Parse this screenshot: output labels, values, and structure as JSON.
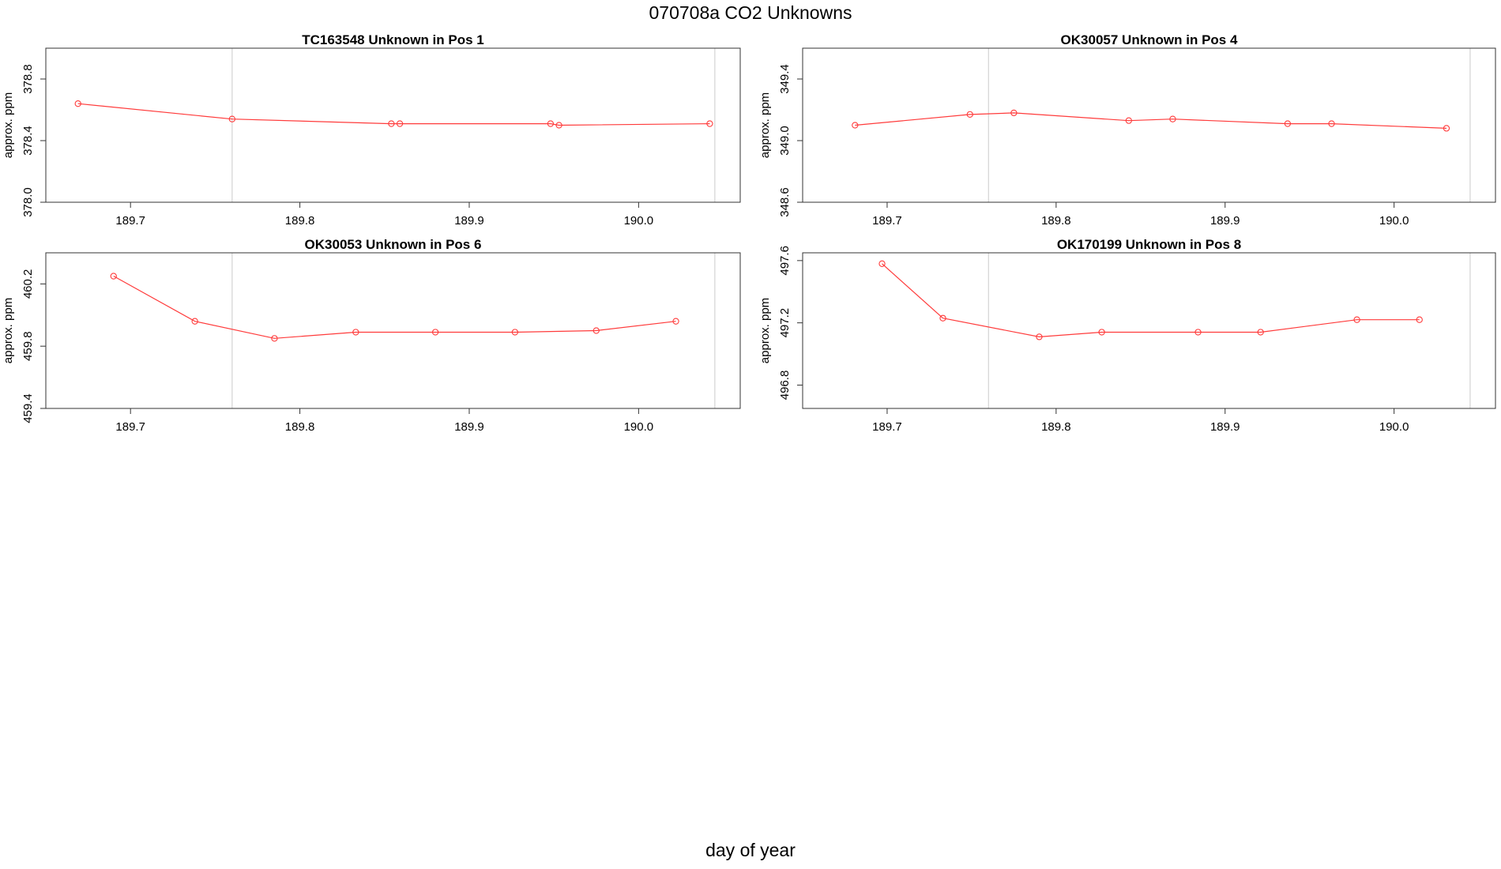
{
  "figure": {
    "title": "070708a  CO2 Unknowns",
    "xlabel": "day of year"
  },
  "chart_data": [
    {
      "type": "line",
      "title": "TC163548    Unknown in Pos 1",
      "ylabel": "approx. ppm",
      "xlim": [
        189.65,
        190.06
      ],
      "ylim": [
        378.0,
        379.0
      ],
      "xticks": [
        "189.7",
        "189.8",
        "189.9",
        "190.0"
      ],
      "yticks": [
        "378.0",
        "378.4",
        "378.8"
      ],
      "ref_lines": [
        189.76,
        190.045
      ],
      "series": [
        {
          "x": [
            189.669,
            189.76,
            189.854,
            189.859,
            189.948,
            189.953,
            190.042
          ],
          "y": [
            378.64,
            378.54,
            378.51,
            378.51,
            378.51,
            378.5,
            378.51
          ]
        }
      ]
    },
    {
      "type": "line",
      "title": "OK30057    Unknown in Pos 4",
      "ylabel": "approx. ppm",
      "xlim": [
        189.65,
        190.06
      ],
      "ylim": [
        348.6,
        349.6
      ],
      "xticks": [
        "189.7",
        "189.8",
        "189.9",
        "190.0"
      ],
      "yticks": [
        "348.6",
        "349.0",
        "349.4"
      ],
      "ref_lines": [
        189.76,
        190.045
      ],
      "series": [
        {
          "x": [
            189.681,
            189.749,
            189.775,
            189.843,
            189.869,
            189.937,
            189.963,
            190.031
          ],
          "y": [
            349.1,
            349.17,
            349.18,
            349.13,
            349.14,
            349.11,
            349.11,
            349.08
          ]
        }
      ]
    },
    {
      "type": "line",
      "title": "OK30053    Unknown in Pos 6",
      "ylabel": "approx. ppm",
      "xlim": [
        189.65,
        190.06
      ],
      "ylim": [
        459.4,
        460.4
      ],
      "xticks": [
        "189.7",
        "189.8",
        "189.9",
        "190.0"
      ],
      "yticks": [
        "459.4",
        "459.8",
        "460.2"
      ],
      "ref_lines": [
        189.76,
        190.045
      ],
      "series": [
        {
          "x": [
            189.69,
            189.738,
            189.785,
            189.833,
            189.88,
            189.927,
            189.975,
            190.022
          ],
          "y": [
            460.25,
            459.96,
            459.85,
            459.89,
            459.89,
            459.89,
            459.9,
            459.96
          ]
        }
      ]
    },
    {
      "type": "line",
      "title": "OK170199    Unknown in Pos 8",
      "ylabel": "approx. ppm",
      "xlim": [
        189.65,
        190.06
      ],
      "ylim": [
        496.65,
        497.65
      ],
      "xticks": [
        "189.7",
        "189.8",
        "189.9",
        "190.0"
      ],
      "yticks": [
        "496.8",
        "497.2",
        "497.6"
      ],
      "ref_lines": [
        189.76,
        190.045
      ],
      "series": [
        {
          "x": [
            189.697,
            189.733,
            189.79,
            189.827,
            189.884,
            189.921,
            189.978,
            190.015
          ],
          "y": [
            497.58,
            497.23,
            497.11,
            497.14,
            497.14,
            497.14,
            497.22,
            497.22
          ]
        }
      ]
    }
  ],
  "colors": {
    "series": "#ff3b3b",
    "ref_line": "#d3d3d3",
    "axes": "#333333"
  }
}
